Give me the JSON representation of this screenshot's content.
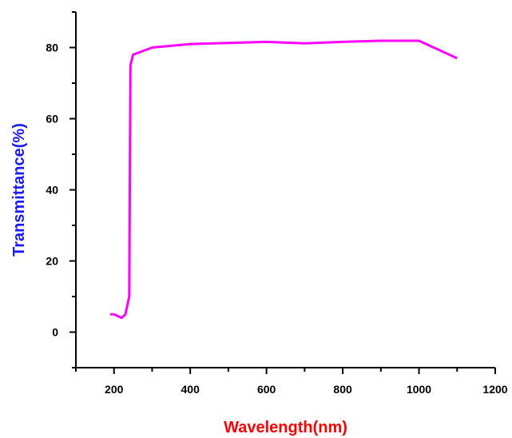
{
  "chart_data": {
    "type": "line",
    "title": "",
    "xlabel": "Wavelength(nm)",
    "ylabel": "Transmittance(%)",
    "xlim": [
      100,
      1200
    ],
    "ylim": [
      -10,
      90
    ],
    "x_major_ticks": [
      200,
      400,
      600,
      800,
      1000,
      1200
    ],
    "x_minor_ticks": [
      100,
      300,
      500,
      700,
      900,
      1100
    ],
    "y_major_ticks": [
      0,
      20,
      40,
      60,
      80
    ],
    "y_minor_ticks": [
      -10,
      10,
      30,
      50,
      70,
      90
    ],
    "x_tick_labels": [
      "200",
      "400",
      "600",
      "800",
      "1000",
      "1200"
    ],
    "y_tick_labels": [
      "0",
      "20",
      "40",
      "60",
      "80"
    ],
    "grid": false,
    "legend": "none",
    "colors": {
      "line": "#ff00ff",
      "xlabel": "#ff0000",
      "ylabel": "#1a1aff",
      "axis": "#000000"
    },
    "series": [
      {
        "x": [
          190,
          200,
          220,
          230,
          240,
          243,
          250,
          300,
          400,
          500,
          600,
          700,
          800,
          900,
          1000,
          1100
        ],
        "y": [
          5,
          5,
          4,
          5,
          10,
          75,
          78,
          80,
          81,
          81.3,
          81.6,
          81.2,
          81.6,
          81.9,
          81.9,
          77
        ]
      }
    ]
  }
}
